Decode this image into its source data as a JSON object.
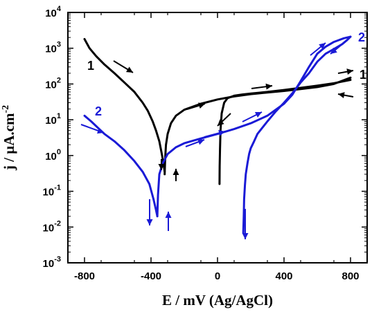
{
  "chart_data": {
    "type": "line",
    "title": "",
    "xlabel": "E / mV (Ag/AgCl)",
    "ylabel": "j / µA.cm-2",
    "ylabel_parts": {
      "main": "j / µA.cm",
      "sup": "-2"
    },
    "xlim": [
      -900,
      900
    ],
    "ylim_log10": [
      -3,
      4
    ],
    "y_scale": "log",
    "grid": false,
    "x_ticks": [
      -800,
      -400,
      0,
      400,
      800
    ],
    "x_tick_labels": [
      "-800",
      "-400",
      "0",
      "400",
      "800"
    ],
    "y_ticks_log10": [
      -3,
      -2,
      -1,
      0,
      1,
      2,
      3,
      4
    ],
    "y_tick_labels": [
      {
        "base": "10",
        "exp": "-3"
      },
      {
        "base": "10",
        "exp": "-2"
      },
      {
        "base": "10",
        "exp": "-1"
      },
      {
        "base": "10",
        "exp": "0"
      },
      {
        "base": "10",
        "exp": "1"
      },
      {
        "base": "10",
        "exp": "2"
      },
      {
        "base": "10",
        "exp": "3"
      },
      {
        "base": "10",
        "exp": "4"
      }
    ],
    "series": [
      {
        "name": "1",
        "color": "#000000",
        "segments": [
          {
            "part": "forward-cathodic",
            "points": [
              [
                -800,
                1800
              ],
              [
                -770,
                1000
              ],
              [
                -730,
                600
              ],
              [
                -680,
                350
              ],
              [
                -620,
                200
              ],
              [
                -560,
                110
              ],
              [
                -500,
                60
              ],
              [
                -450,
                30
              ],
              [
                -420,
                18
              ],
              [
                -390,
                9
              ],
              [
                -370,
                5
              ],
              [
                -350,
                2.5
              ],
              [
                -335,
                1.1
              ],
              [
                -325,
                0.6
              ],
              [
                -318,
                0.35
              ]
            ]
          },
          {
            "part": "forward-anodic",
            "points": [
              [
                -318,
                0.3
              ],
              [
                -315,
                0.8
              ],
              [
                -310,
                2
              ],
              [
                -300,
                4
              ],
              [
                -280,
                8
              ],
              [
                -250,
                13
              ],
              [
                -200,
                19
              ],
              [
                -100,
                28
              ],
              [
                0,
                37
              ],
              [
                100,
                45
              ],
              [
                200,
                52
              ],
              [
                300,
                58
              ],
              [
                400,
                64
              ],
              [
                500,
                72
              ],
              [
                600,
                82
              ],
              [
                700,
                100
              ],
              [
                800,
                150
              ]
            ]
          },
          {
            "part": "reverse",
            "points": [
              [
                800,
                130
              ],
              [
                700,
                105
              ],
              [
                600,
                90
              ],
              [
                500,
                78
              ],
              [
                400,
                68
              ],
              [
                300,
                60
              ],
              [
                250,
                57
              ],
              [
                200,
                54
              ],
              [
                150,
                51
              ],
              [
                100,
                47
              ],
              [
                60,
                40
              ],
              [
                40,
                30
              ],
              [
                25,
                15
              ],
              [
                18,
                5
              ],
              [
                15,
                1.5
              ],
              [
                13,
                0.5
              ],
              [
                12,
                0.16
              ]
            ]
          }
        ]
      },
      {
        "name": "2",
        "color": "#1a1ad6",
        "segments": [
          {
            "part": "forward-cathodic",
            "points": [
              [
                -800,
                13
              ],
              [
                -760,
                9
              ],
              [
                -720,
                6
              ],
              [
                -680,
                4
              ],
              [
                -620,
                2.5
              ],
              [
                -560,
                1.4
              ],
              [
                -500,
                0.7
              ],
              [
                -450,
                0.35
              ],
              [
                -410,
                0.16
              ],
              [
                -385,
                0.06
              ],
              [
                -370,
                0.03
              ],
              [
                -362,
                0.02
              ]
            ]
          },
          {
            "part": "forward-anodic",
            "points": [
              [
                -362,
                0.02
              ],
              [
                -358,
                0.08
              ],
              [
                -350,
                0.3
              ],
              [
                -330,
                0.6
              ],
              [
                -300,
                1.1
              ],
              [
                -250,
                1.7
              ],
              [
                -200,
                2.2
              ],
              [
                -100,
                3
              ],
              [
                0,
                4
              ],
              [
                100,
                5.5
              ],
              [
                200,
                8
              ],
              [
                300,
                13
              ],
              [
                400,
                28
              ],
              [
                450,
                50
              ],
              [
                500,
                120
              ],
              [
                550,
                300
              ],
              [
                600,
                700
              ],
              [
                650,
                1100
              ],
              [
                700,
                1500
              ],
              [
                760,
                1900
              ],
              [
                800,
                2100
              ]
            ]
          },
          {
            "part": "reverse",
            "points": [
              [
                800,
                2100
              ],
              [
                780,
                1700
              ],
              [
                750,
                1300
              ],
              [
                700,
                950
              ],
              [
                650,
                700
              ],
              [
                600,
                420
              ],
              [
                550,
                200
              ],
              [
                500,
                110
              ],
              [
                450,
                55
              ],
              [
                400,
                30
              ],
              [
                350,
                17
              ],
              [
                300,
                9
              ],
              [
                270,
                6
              ],
              [
                240,
                4
              ],
              [
                220,
                2.5
              ],
              [
                200,
                1.6
              ],
              [
                190,
                1.1
              ],
              [
                180,
                0.6
              ],
              [
                170,
                0.3
              ],
              [
                165,
                0.15
              ],
              [
                160,
                0.06
              ],
              [
                158,
                0.02
              ],
              [
                155,
                0.007
              ]
            ]
          }
        ]
      }
    ],
    "annotations": [
      {
        "text": "1",
        "series": "1",
        "color": "#000000"
      },
      {
        "text": "1",
        "series": "1",
        "color": "#000000"
      },
      {
        "text": "2",
        "series": "2",
        "color": "#1a1ad6"
      },
      {
        "text": "2",
        "series": "2",
        "color": "#1a1ad6"
      }
    ]
  }
}
